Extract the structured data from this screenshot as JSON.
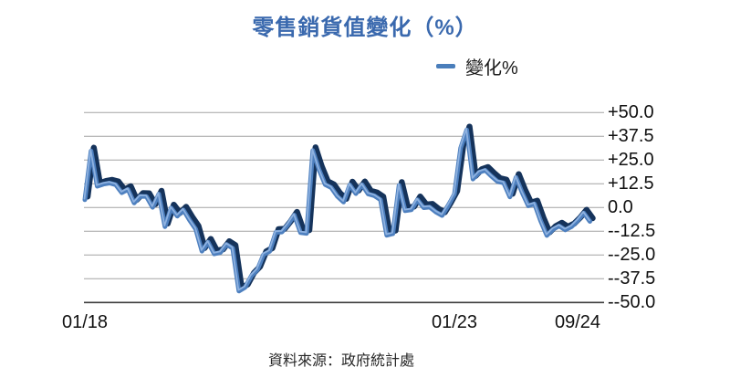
{
  "title": "零售銷貨值變化（%）",
  "legend": {
    "label": "變化%",
    "marker_color": "#4a7ebb"
  },
  "source_note": "資料來源：政府統計處",
  "colors": {
    "title_text": "#3a69ae",
    "line_face": "#4e80bf",
    "line_highlight": "#8fb2e0",
    "line_shadow": "#15335b",
    "gridline": "#a3a3a3",
    "axis_line": "#3d3d3d",
    "label_text": "#111111"
  },
  "chart_data": {
    "type": "line",
    "style": "3d-ribbon",
    "title": "零售銷貨值變化（%）",
    "series_name": "變化%",
    "x_frequency": "monthly",
    "x_start": "01/18",
    "x_end": "11/24",
    "grid": "horizontal",
    "legend_position": "top-right",
    "ylim": [
      -50,
      50
    ],
    "y_ticks": [
      50,
      37.5,
      25,
      12.5,
      0,
      -12.5,
      -25,
      -37.5,
      -50
    ],
    "y_tick_labels": [
      "+50.0",
      "+37.5",
      "+25.0",
      "+12.5",
      "0.0",
      "--12.5",
      "--25.0",
      "--37.5",
      "--50.0"
    ],
    "x_tick_labels": [
      "01/18",
      "01/23",
      "09/24"
    ],
    "x_tick_indices": [
      0,
      60,
      80
    ],
    "months": [
      "01/18",
      "02/18",
      "03/18",
      "04/18",
      "05/18",
      "06/18",
      "07/18",
      "08/18",
      "09/18",
      "10/18",
      "11/18",
      "12/18",
      "01/19",
      "02/19",
      "03/19",
      "04/19",
      "05/19",
      "06/19",
      "07/19",
      "08/19",
      "09/19",
      "10/19",
      "11/19",
      "12/19",
      "01/20",
      "02/20",
      "03/20",
      "04/20",
      "05/20",
      "06/20",
      "07/20",
      "08/20",
      "09/20",
      "10/20",
      "11/20",
      "12/20",
      "01/21",
      "02/21",
      "03/21",
      "04/21",
      "05/21",
      "06/21",
      "07/21",
      "08/21",
      "09/21",
      "10/21",
      "11/21",
      "12/21",
      "01/22",
      "02/22",
      "03/22",
      "04/22",
      "05/22",
      "06/22",
      "07/22",
      "08/22",
      "09/22",
      "10/22",
      "11/22",
      "12/22",
      "01/23",
      "02/23",
      "03/23",
      "04/23",
      "05/23",
      "06/23",
      "07/23",
      "08/23",
      "09/23",
      "10/23",
      "11/23",
      "12/23",
      "01/24",
      "02/24",
      "03/24",
      "04/24",
      "05/24",
      "06/24",
      "07/24",
      "08/24",
      "09/24",
      "10/24",
      "11/24"
    ],
    "values": [
      4.1,
      29.8,
      11.2,
      12.3,
      12.9,
      12.0,
      7.8,
      9.5,
      2.4,
      5.9,
      5.8,
      0.1,
      7.1,
      -10.1,
      -0.2,
      -4.5,
      -1.3,
      -6.7,
      -11.4,
      -23.0,
      -18.2,
      -24.4,
      -23.7,
      -19.4,
      -21.5,
      -44.0,
      -42.1,
      -36.1,
      -32.8,
      -24.8,
      -23.1,
      -13.1,
      -12.9,
      -8.8,
      -4.0,
      -13.2,
      -13.6,
      30.0,
      20.1,
      12.1,
      10.5,
      5.8,
      2.9,
      11.9,
      7.3,
      12.0,
      7.1,
      6.2,
      4.1,
      -14.6,
      -13.8,
      11.7,
      -1.7,
      -1.2,
      4.1,
      -0.1,
      0.2,
      -2.4,
      -4.2,
      1.1,
      7.0,
      31.3,
      40.9,
      15.0,
      18.5,
      19.6,
      16.5,
      13.7,
      13.0,
      5.6,
      15.9,
      7.8,
      0.9,
      1.9,
      -7.0,
      -14.7,
      -11.5,
      -9.7,
      -11.8,
      -10.1,
      -6.9,
      -2.9,
      -7.3
    ]
  }
}
